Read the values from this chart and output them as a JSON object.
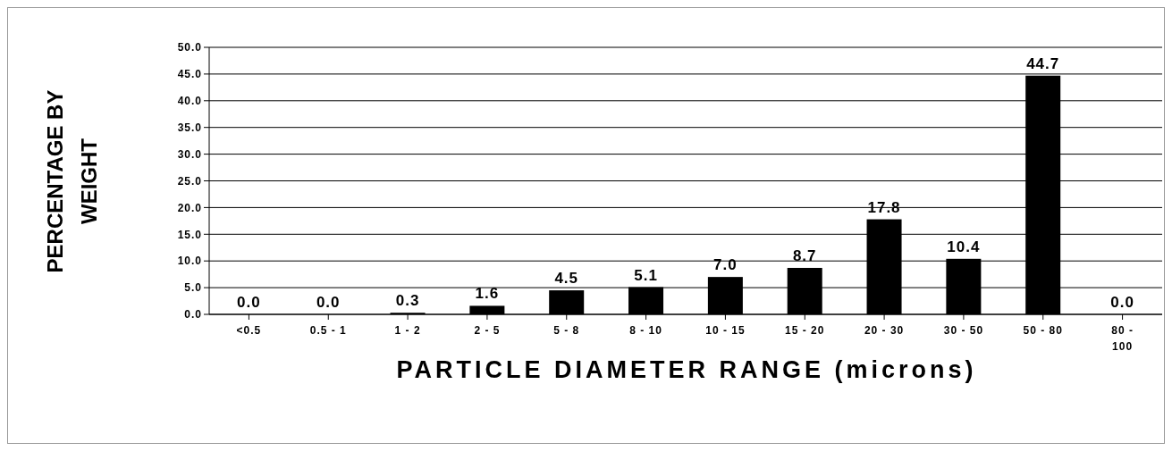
{
  "chart_data": {
    "type": "bar",
    "xlabel": "PARTICLE DIAMETER RANGE (microns)",
    "ylabel": "PERCENTAGE BY WEIGHT",
    "categories": [
      "<0.5",
      "0.5 - 1",
      "1 - 2",
      "2 - 5",
      "5 - 8",
      "8 - 10",
      "10 - 15",
      "15 - 20",
      "20 - 30",
      "30 - 50",
      "50 - 80",
      "80 - 100"
    ],
    "values": [
      0.0,
      0.0,
      0.3,
      1.6,
      4.5,
      5.1,
      7.0,
      8.7,
      17.8,
      10.4,
      44.7,
      0.0
    ],
    "value_labels": [
      "0.0",
      "0.0",
      "0.3",
      "1.6",
      "4.5",
      "5.1",
      "7.0",
      "8.7",
      "17.8",
      "10.4",
      "44.7",
      "0.0"
    ],
    "color": "#000000",
    "ylim": [
      0,
      50
    ],
    "yticks": [
      {
        "value": 0,
        "label": "0.0"
      },
      {
        "value": 5,
        "label": "5.0"
      },
      {
        "value": 10,
        "label": "10.0"
      },
      {
        "value": 15,
        "label": "15.0"
      },
      {
        "value": 20,
        "label": "20.0"
      },
      {
        "value": 25,
        "label": "25.0"
      },
      {
        "value": 30,
        "label": "30.0"
      },
      {
        "value": 35,
        "label": "35.0"
      },
      {
        "value": 40,
        "label": "40.0"
      },
      {
        "value": 45,
        "label": "45.0"
      },
      {
        "value": 50,
        "label": "50.0"
      }
    ],
    "grid": "y"
  }
}
